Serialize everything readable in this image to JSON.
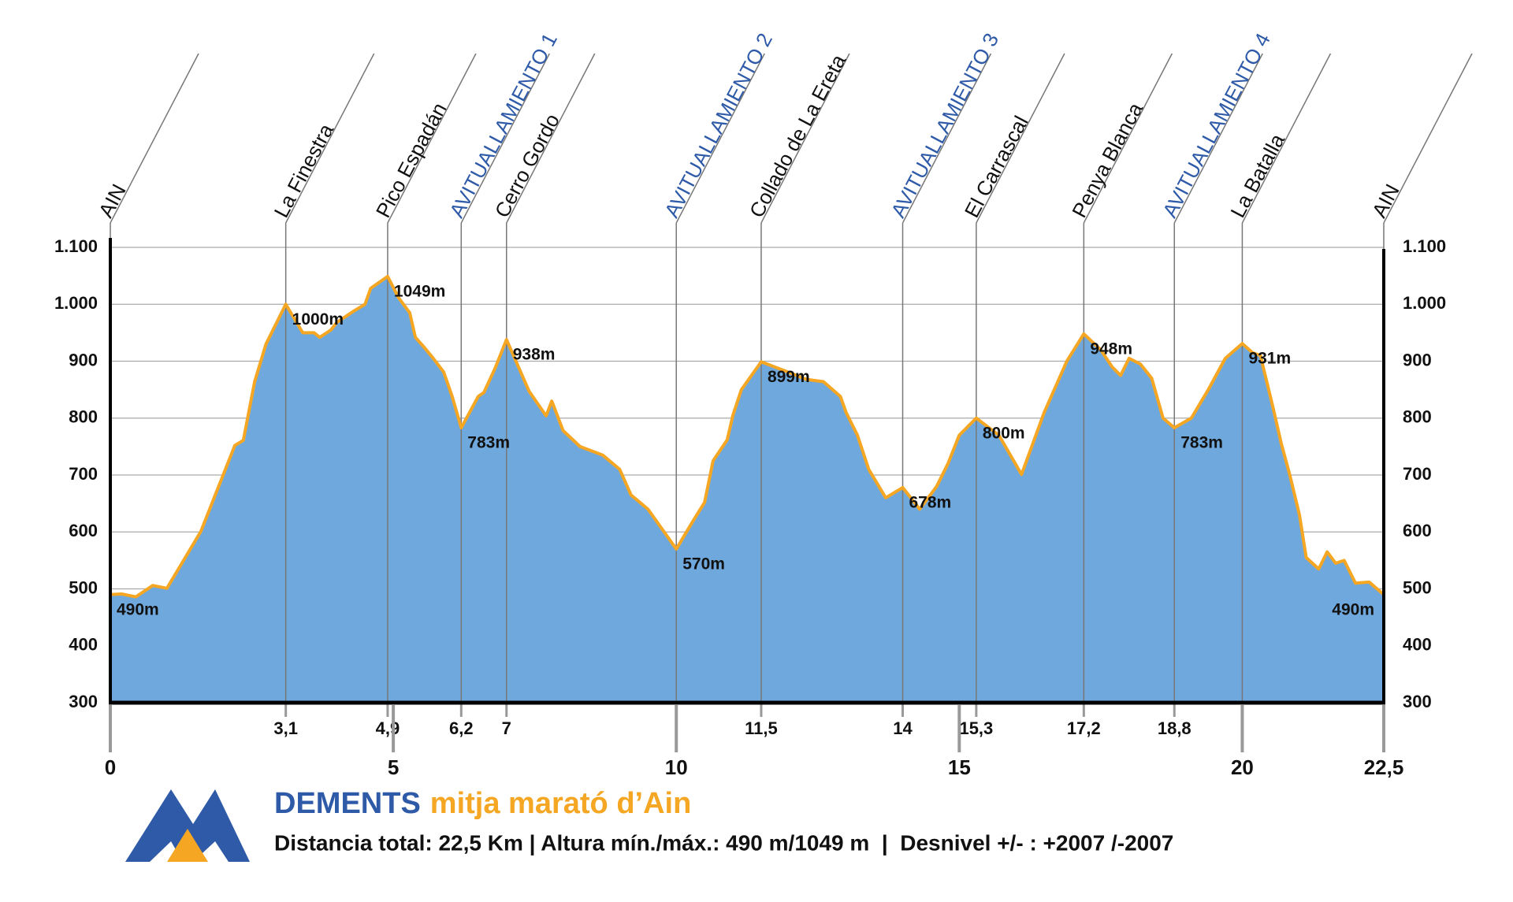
{
  "chart_data": {
    "type": "area",
    "title": "DEMENTS",
    "title_suffix": "mitja marató d’Ain",
    "subtitle": "Distancia total: 22,5 Km | Altura mín./máx.: 490 m/1049 m  |  Desnivel +/- : +2007 /-2007",
    "fill_color": "#6fa8dc",
    "line_color": "#f5a623",
    "x": [
      0,
      0.2,
      0.45,
      0.75,
      1.0,
      1.6,
      2.2,
      2.35,
      2.55,
      2.75,
      3.1,
      3.4,
      3.6,
      3.7,
      3.9,
      4.0,
      4.3,
      4.5,
      4.6,
      4.9,
      5.09,
      5.29,
      5.39,
      5.54,
      5.69,
      5.89,
      6.04,
      6.2,
      6.5,
      6.6,
      6.8,
      7.0,
      7.4,
      7.7,
      7.8,
      8.0,
      8.3,
      8.7,
      9.0,
      9.2,
      9.5,
      10.0,
      10.3,
      10.5,
      10.65,
      10.9,
      11.0,
      11.15,
      11.5,
      12.0,
      12.3,
      12.6,
      12.9,
      13.0,
      13.2,
      13.4,
      13.7,
      14.0,
      14.3,
      14.6,
      14.8,
      15.0,
      15.3,
      15.5,
      15.7,
      16.1,
      16.5,
      16.9,
      17.2,
      17.5,
      17.7,
      17.85,
      18.0,
      18.2,
      18.4,
      18.6,
      18.8,
      19.1,
      19.4,
      19.7,
      20.0,
      20.18,
      20.32,
      20.54,
      20.69,
      20.84,
      21.01,
      21.13,
      21.35,
      21.5,
      21.65,
      21.8,
      22.0,
      22.24,
      22.5
    ],
    "values": [
      490,
      491,
      486,
      506,
      501,
      601,
      752,
      761,
      864,
      930,
      1000,
      950,
      950,
      942,
      955,
      968,
      988,
      1000,
      1028,
      1049,
      1012,
      985,
      942,
      925,
      907,
      881,
      838,
      783,
      838,
      845,
      888,
      938,
      847,
      804,
      830,
      778,
      750,
      735,
      710,
      665,
      640,
      570,
      620,
      652,
      725,
      762,
      805,
      850,
      899,
      880,
      868,
      864,
      838,
      810,
      770,
      710,
      660,
      678,
      640,
      680,
      720,
      770,
      800,
      785,
      770,
      701,
      810,
      900,
      948,
      920,
      890,
      875,
      905,
      895,
      870,
      800,
      783,
      800,
      850,
      905,
      931,
      915,
      910,
      820,
      755,
      700,
      630,
      555,
      535,
      565,
      545,
      550,
      510,
      512,
      490
    ],
    "value_labels": [
      "490m",
      null,
      null,
      null,
      null,
      null,
      null,
      null,
      null,
      null,
      "1000m",
      null,
      null,
      null,
      null,
      null,
      null,
      null,
      null,
      "1049m",
      null,
      null,
      null,
      null,
      null,
      null,
      null,
      "783m",
      null,
      null,
      null,
      "938m",
      null,
      null,
      null,
      null,
      null,
      null,
      null,
      null,
      null,
      "570m",
      null,
      null,
      null,
      null,
      null,
      null,
      "899m",
      null,
      null,
      null,
      null,
      null,
      null,
      null,
      null,
      "678m",
      null,
      null,
      null,
      null,
      "800m",
      null,
      null,
      null,
      null,
      null,
      "948m",
      null,
      null,
      null,
      null,
      null,
      null,
      null,
      "783m",
      null,
      null,
      null,
      "931m",
      null,
      null,
      null,
      null,
      null,
      null,
      null,
      null,
      null,
      null,
      null,
      null,
      null,
      "490m"
    ],
    "xlim": [
      0,
      22.5
    ],
    "xticks": [
      0,
      5,
      10,
      15,
      20,
      {
        "value": 22.5,
        "label": "22,5"
      }
    ],
    "waypoint_color": "#2e5aa8",
    "waypoints": [
      {
        "x": 0,
        "label": "AIN"
      },
      {
        "x": 3.1,
        "label": "La Finestra",
        "tick": "3,1"
      },
      {
        "x": 4.9,
        "label": "Pico Espadán",
        "tick": "4,9"
      },
      {
        "x": 6.2,
        "label": "AVITUALLAMIENTO 1",
        "tick": "6,2",
        "aid": true
      },
      {
        "x": 7,
        "label": "Cerro Gordo",
        "tick": "7"
      },
      {
        "x": 10,
        "label": "AVITUALLAMIENTO 2",
        "aid": true
      },
      {
        "x": 11.5,
        "label": "Collado de La Ereta",
        "tick": "11,5"
      },
      {
        "x": 14,
        "label": "AVITUALLAMIENTO 3",
        "tick": "14",
        "aid": true
      },
      {
        "x": 15.3,
        "label": "El Carrascal",
        "tick": "15,3"
      },
      {
        "x": 17.2,
        "label": "Penya Blanca",
        "tick": "17,2"
      },
      {
        "x": 18.8,
        "label": "AVITUALLAMIENTO 4",
        "tick": "18,8",
        "aid": true
      },
      {
        "x": 20,
        "label": "La Batalla"
      },
      {
        "x": 22.5,
        "label": "AIN"
      }
    ],
    "ylim": [
      300,
      1100
    ],
    "yticks": [
      {
        "value": 1100,
        "label": "1.100"
      },
      {
        "value": 1000,
        "label": "1.000"
      },
      900,
      800,
      700,
      600,
      500,
      400,
      300
    ],
    "grid": true
  }
}
